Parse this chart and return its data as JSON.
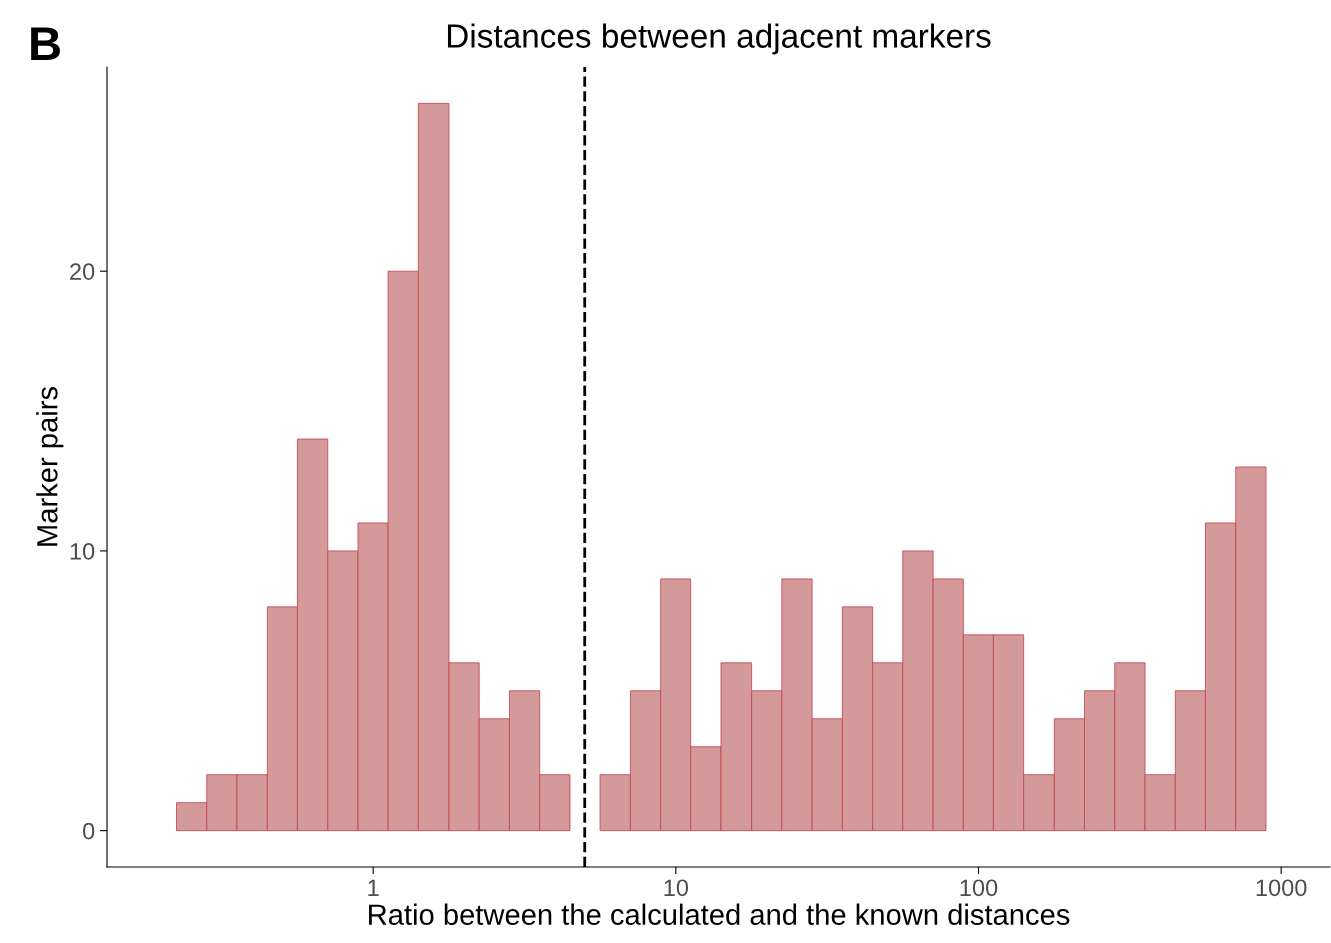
{
  "chart_data": {
    "type": "histogram",
    "title": "Distances between adjacent markers",
    "xlabel": "Ratio between the calculated and the known distances",
    "ylabel": "Marker pairs",
    "annotations": [
      "B"
    ],
    "bins": [
      0.224,
      0.282,
      0.355,
      0.447,
      0.562,
      0.708,
      0.891,
      1.12,
      1.41,
      1.78,
      2.24,
      2.82,
      3.55,
      4.47,
      5.62,
      7.08,
      8.91,
      11.2,
      14.1,
      17.8,
      22.4,
      28.2,
      35.5,
      44.7,
      56.2,
      70.8,
      89.1,
      112,
      141,
      178,
      224,
      282,
      355,
      447,
      562,
      708,
      891
    ],
    "values": [
      1,
      2,
      2,
      8,
      14,
      10,
      11,
      20,
      26,
      6,
      4,
      5,
      2,
      0,
      2,
      5,
      9,
      3,
      6,
      5,
      9,
      4,
      8,
      6,
      10,
      9,
      7,
      7,
      2,
      4,
      5,
      6,
      2,
      5,
      11,
      13
    ],
    "color": "#d4999a",
    "log": "x",
    "xlim": [
      0.132,
      1450
    ],
    "xticks": [
      1,
      10,
      100,
      1000
    ],
    "ylim": [
      -1.3,
      27.3
    ],
    "yticks": [
      0,
      10,
      20
    ],
    "ref_lines": [
      {
        "axis": "x",
        "value": 5,
        "line_style": "dashed",
        "color": "#000000"
      }
    ],
    "grid": false,
    "legend": false
  }
}
